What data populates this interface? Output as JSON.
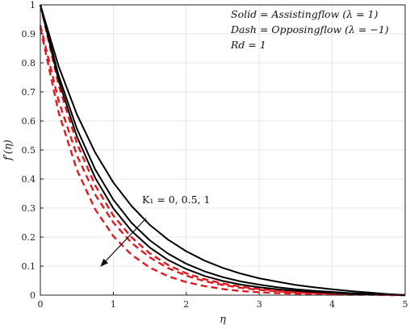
{
  "chart_data": {
    "type": "line",
    "xlabel": "η",
    "ylabel": "f′(η)",
    "xlim": [
      0,
      5
    ],
    "ylim": [
      0,
      1
    ],
    "xticks": [
      "0",
      "1",
      "2",
      "3",
      "4",
      "5"
    ],
    "yticks": [
      "0",
      "0.1",
      "0.2",
      "0.3",
      "0.4",
      "0.5",
      "0.6",
      "0.7",
      "0.8",
      "0.9",
      "1"
    ],
    "grid": true,
    "legend_lines": [
      "Solid = Assistingflow (λ = 1)",
      "Dash = Opposingflow (λ = −1)",
      "Rd = 1"
    ],
    "annotation": {
      "text": "K₁ = 0, 0.5, 1",
      "arrow_from": [
        1.45,
        0.265
      ],
      "arrow_to": [
        0.83,
        0.1
      ]
    },
    "colors": {
      "assisting": "#000000",
      "opposing": "#e0191f",
      "grid": "#e6e6e6",
      "axes": "#222222"
    },
    "x": [
      0,
      0.25,
      0.5,
      0.75,
      1,
      1.25,
      1.5,
      1.75,
      2,
      2.25,
      2.5,
      2.75,
      3,
      3.25,
      3.5,
      3.75,
      4,
      4.25,
      4.5,
      4.75,
      5
    ],
    "series": [
      {
        "style": "solid",
        "group": "assisting",
        "K1": 0,
        "values": [
          1.0,
          0.789,
          0.623,
          0.492,
          0.388,
          0.307,
          0.242,
          0.191,
          0.151,
          0.119,
          0.094,
          0.074,
          0.058,
          0.046,
          0.035,
          0.027,
          0.02,
          0.014,
          0.009,
          0.004,
          0.0
        ]
      },
      {
        "style": "solid",
        "group": "assisting",
        "K1": 0.5,
        "values": [
          1.0,
          0.757,
          0.574,
          0.434,
          0.329,
          0.249,
          0.189,
          0.143,
          0.108,
          0.082,
          0.062,
          0.047,
          0.036,
          0.027,
          0.02,
          0.015,
          0.011,
          0.007,
          0.005,
          0.002,
          0.0
        ]
      },
      {
        "style": "solid",
        "group": "assisting",
        "K1": 1,
        "values": [
          1.0,
          0.74,
          0.547,
          0.405,
          0.299,
          0.221,
          0.164,
          0.121,
          0.09,
          0.066,
          0.049,
          0.036,
          0.027,
          0.02,
          0.015,
          0.011,
          0.008,
          0.005,
          0.003,
          0.002,
          0.0
        ]
      },
      {
        "style": "dashed",
        "group": "opposing",
        "K1": 0,
        "values": [
          1.0,
          0.724,
          0.524,
          0.379,
          0.274,
          0.199,
          0.144,
          0.104,
          0.075,
          0.055,
          0.04,
          0.029,
          0.021,
          0.015,
          0.011,
          0.008,
          0.006,
          0.004,
          0.003,
          0.001,
          0.0
        ]
      },
      {
        "style": "dashed",
        "group": "opposing",
        "K1": 0.5,
        "values": [
          0.93,
          0.67,
          0.482,
          0.347,
          0.25,
          0.18,
          0.13,
          0.093,
          0.067,
          0.048,
          0.035,
          0.025,
          0.018,
          0.013,
          0.009,
          0.007,
          0.005,
          0.003,
          0.002,
          0.001,
          0.0
        ]
      },
      {
        "style": "dashed",
        "group": "opposing",
        "K1": 1,
        "values": [
          0.92,
          0.63,
          0.432,
          0.296,
          0.203,
          0.139,
          0.095,
          0.065,
          0.045,
          0.031,
          0.021,
          0.014,
          0.01,
          0.007,
          0.005,
          0.003,
          0.002,
          0.001,
          0.001,
          0.0,
          0.0
        ]
      }
    ]
  }
}
